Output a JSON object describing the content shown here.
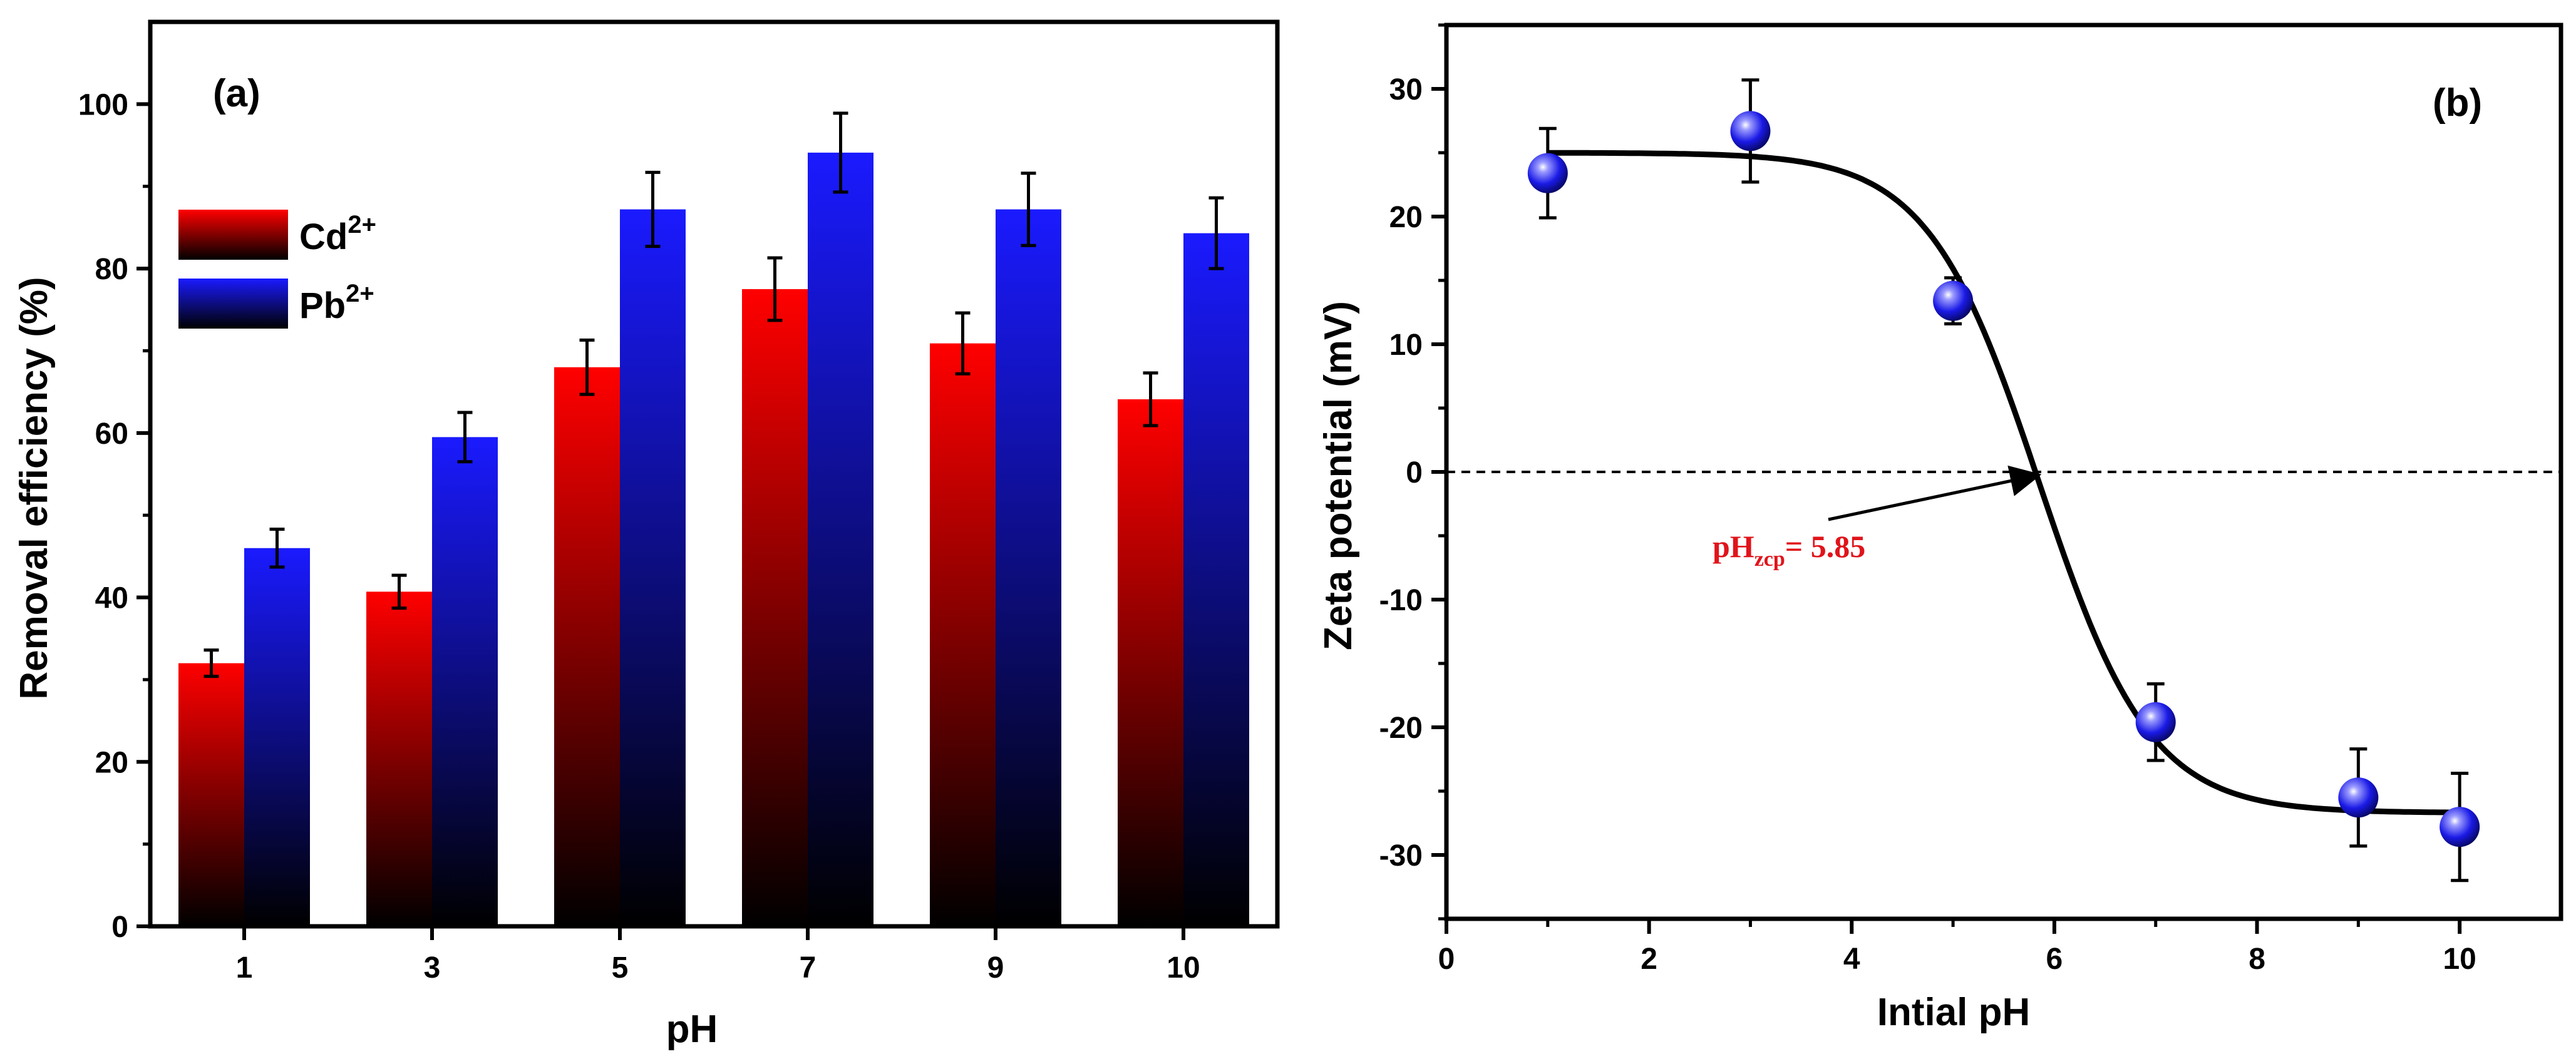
{
  "colors": {
    "cd_top": "#ff0000",
    "pb_top": "#1a1aff",
    "bar_bottom": "#000000",
    "point_fill": "#1a1ae6",
    "fit_line": "#000000",
    "annotation": "#e0141b"
  },
  "chart_data": [
    {
      "type": "bar",
      "panel_label": "(a)",
      "xlabel": "pH",
      "ylabel": "Removal efficiency (%)",
      "categories": [
        "1",
        "3",
        "5",
        "7",
        "9",
        "10"
      ],
      "ylim": [
        0,
        110
      ],
      "yticks": [
        0,
        20,
        40,
        60,
        80,
        100
      ],
      "series": [
        {
          "name": "Cd",
          "superscript": "2+",
          "values": [
            32,
            40.7,
            68,
            77.5,
            70.9,
            64.1
          ],
          "errors": [
            1.6,
            2.0,
            3.3,
            3.8,
            3.7,
            3.2
          ]
        },
        {
          "name": "Pb",
          "superscript": "2+",
          "values": [
            46,
            59.5,
            87.2,
            94.1,
            87.2,
            84.3
          ],
          "errors": [
            2.3,
            3.0,
            4.5,
            4.8,
            4.4,
            4.3
          ]
        }
      ],
      "legend_position": "upper-left"
    },
    {
      "type": "scatter",
      "panel_label": "(b)",
      "xlabel": "Intial pH",
      "ylabel": "Zeta potential (mV)",
      "xlim": [
        0,
        11
      ],
      "ylim": [
        -35,
        35
      ],
      "xticks": [
        0,
        2,
        4,
        6,
        8,
        10
      ],
      "yticks": [
        -30,
        -20,
        -10,
        0,
        10,
        20,
        30
      ],
      "points": {
        "x": [
          1,
          3,
          5,
          7,
          9,
          10
        ],
        "y": [
          23.4,
          26.7,
          13.4,
          -19.6,
          -25.5,
          -27.8
        ],
        "errors": [
          3.5,
          4.0,
          1.8,
          3.0,
          3.8,
          4.2
        ]
      },
      "fit": {
        "type": "sigmoid",
        "upper": 25,
        "lower": -26.7,
        "center": 5.85,
        "width": 0.55
      },
      "reference_line": {
        "y": 0,
        "style": "dashed"
      },
      "annotation": {
        "base": "pH",
        "subscript": "zcp",
        "value": "= 5.85",
        "points_to": [
          5.85,
          0
        ]
      }
    }
  ]
}
